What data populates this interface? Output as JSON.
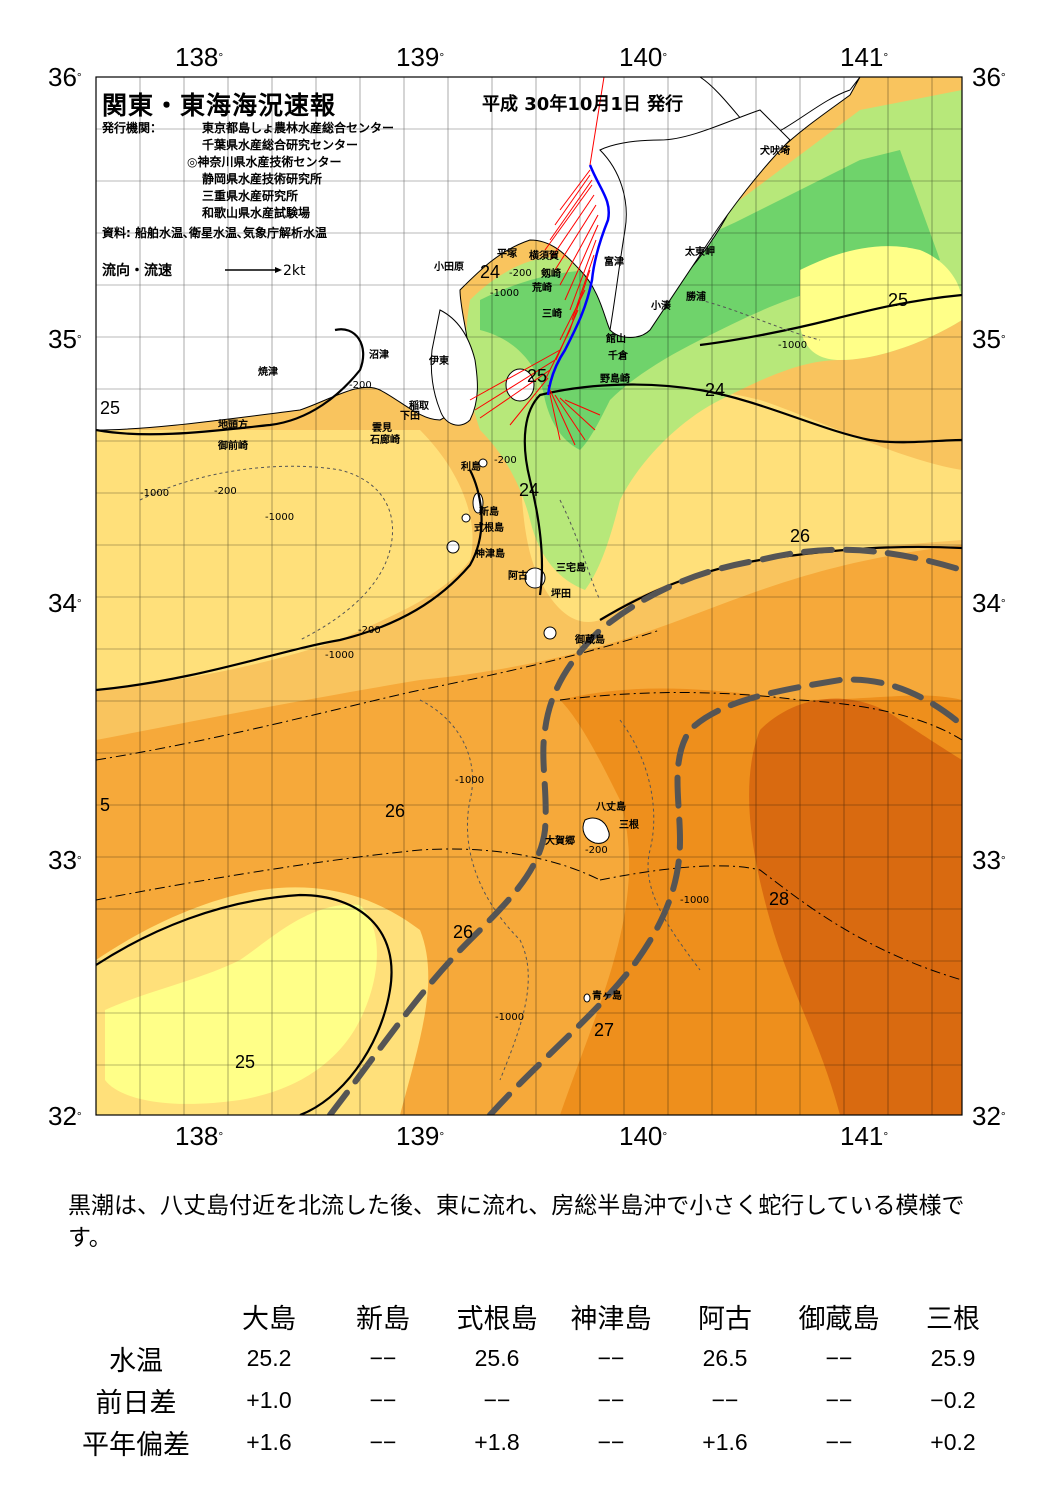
{
  "header": {
    "title": "関東・東海海況速報",
    "date": "平成 30年10月1日 発行",
    "publisher_label": "発行機関：",
    "publishers": [
      "東京都島しょ農林水産総合センター",
      "千葉県水産総合研究センター",
      "◎神奈川県水産技術センター",
      "静岡県水産技術研究所",
      "三重県水産研究所",
      "和歌山県水産試験場"
    ],
    "sources": "資料: 船舶水温､衛星水温､気象庁解析水温",
    "legend_label": "流向・流速",
    "legend_scale": "2kt"
  },
  "axes": {
    "lon_top": [
      "138",
      "139",
      "140",
      "141"
    ],
    "lon_bottom": [
      "138",
      "139",
      "140",
      "141"
    ],
    "lat_left": [
      "36",
      "35",
      "34",
      "33",
      "32"
    ],
    "lat_right": [
      "36",
      "35",
      "34",
      "33",
      "32"
    ],
    "degree_symbol": "°"
  },
  "places": {
    "odawara": "小田原",
    "hiratsuka": "平塚",
    "yokosuka": "横須賀",
    "futtsu": "富津",
    "tsurugisaki": "剱崎",
    "arasaki": "荒崎",
    "misaki": "三崎",
    "tatsuno": "太東岬",
    "inubo": "犬吠埼",
    "katsuura": "勝浦",
    "kominato": "小湊",
    "tateyama": "館山",
    "chikura": "千倉",
    "nojima": "野島崎",
    "numazu": "沼津",
    "ito": "伊東",
    "yaizu": "焼津",
    "inatori": "稲取",
    "shimoda": "下田",
    "kumomi": "雲見",
    "irozaki": "石廊崎",
    "jitogata": "地頭方",
    "omaezaki": "御前崎",
    "toshima": "利島",
    "niijima": "新島",
    "shikine": "式根島",
    "kozu": "神津島",
    "miyake": "三宅島",
    "ako": "阿古",
    "tsubota": "坪田",
    "mikura": "御蔵島",
    "hachijo": "八丈島",
    "mitsune": "三根",
    "okago": "大賀郷",
    "aogashima": "青ヶ島"
  },
  "contour_labels": {
    "t24a": "24",
    "t24b": "24",
    "t24c": "24",
    "t25a": "25",
    "t25b": "25",
    "t25c": "25",
    "t25d": "25",
    "t26a": "26",
    "t26b": "26",
    "t26c": "26",
    "t27": "27",
    "t28": "28"
  },
  "depth_labels": {
    "d200a": "-200",
    "d200b": "-200",
    "d200c": "-200",
    "d200d": "-200",
    "d200e": "-200",
    "d200f": "-200",
    "d1000a": "-1000",
    "d1000b": "-1000",
    "d1000c": "-1000",
    "d1000d": "-1000",
    "d1000e": "-1000",
    "d1000f": "-1000",
    "d1000g": "-1000",
    "d1000h": "-1000"
  },
  "colors": {
    "t_lt24": "#6fd36b",
    "t_24": "#b7e87a",
    "t_25a": "#ffff88",
    "t_25b": "#ffe07a",
    "t_26a": "#f9c45e",
    "t_26b": "#f6a93a",
    "t_27": "#ee8f1c",
    "t_28": "#d96a10",
    "kuroshio_axis": "#555555",
    "current_vectors": "#ff0000",
    "ship_track": "#0000ff"
  },
  "caption": "黒潮は、八丈島付近を北流した後、東に流れ、房総半島沖で小さく蛇行している模様です。",
  "table": {
    "columns": [
      "大島",
      "新島",
      "式根島",
      "神津島",
      "阿古",
      "御蔵島",
      "三根"
    ],
    "rows": [
      {
        "label": "水温",
        "values": [
          "25.2",
          "−−",
          "25.6",
          "−−",
          "26.5",
          "−−",
          "25.9"
        ]
      },
      {
        "label": "前日差",
        "values": [
          "+1.0",
          "−−",
          "−−",
          "−−",
          "−−",
          "−−",
          "−0.2"
        ]
      },
      {
        "label": "平年偏差",
        "values": [
          "+1.6",
          "−−",
          "+1.8",
          "−−",
          "+1.6",
          "−−",
          "+0.2"
        ]
      }
    ]
  }
}
